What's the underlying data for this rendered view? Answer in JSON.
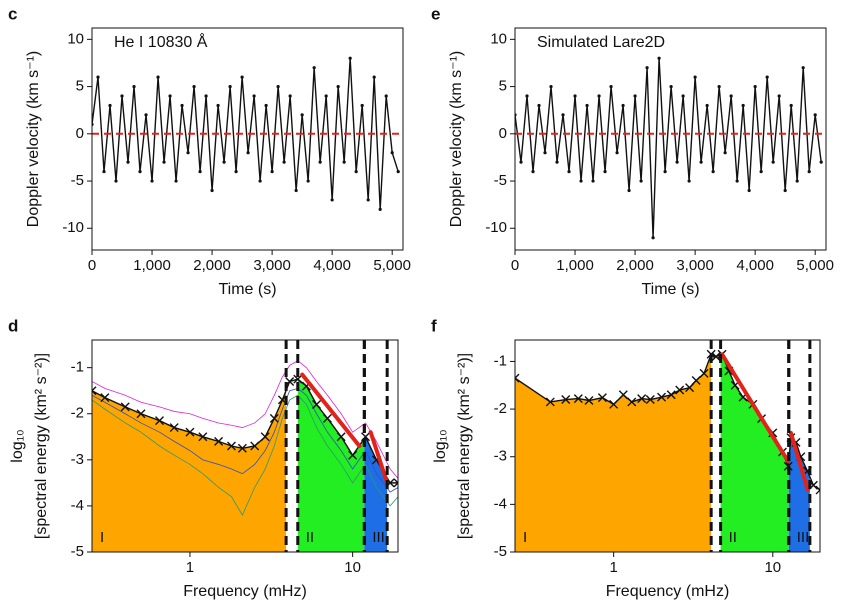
{
  "chart_data": [
    {
      "type": "line",
      "panel_label": "c",
      "annotation": "He I 10830 Å",
      "x_label": "Time (s)",
      "y_label": "Doppler velocity (km s⁻¹)",
      "xlim": [
        0,
        5180
      ],
      "xticks": [
        0,
        {
          "value": 1000,
          "label": "1,000"
        },
        {
          "value": 2000,
          "label": "2,000"
        },
        {
          "value": 3000,
          "label": "3,000"
        },
        {
          "value": 4000,
          "label": "4,000"
        },
        {
          "value": 5000,
          "label": "5,000"
        }
      ],
      "ylim": [
        -12.3,
        11.2
      ],
      "yticks": [
        -10,
        -5,
        0,
        5,
        10
      ],
      "hline": 0,
      "hline_color": "#e32219",
      "series": [
        {
          "color": "#111111",
          "marker": "dot",
          "x": [
            0,
            100,
            200,
            300,
            400,
            500,
            600,
            700,
            800,
            900,
            1000,
            1100,
            1200,
            1300,
            1400,
            1500,
            1600,
            1700,
            1800,
            1900,
            2000,
            2100,
            2200,
            2300,
            2400,
            2500,
            2600,
            2700,
            2800,
            2900,
            3000,
            3100,
            3200,
            3300,
            3400,
            3500,
            3600,
            3700,
            3800,
            3900,
            4000,
            4100,
            4200,
            4300,
            4400,
            4500,
            4600,
            4700,
            4800,
            4900,
            5000,
            5100
          ],
          "values": [
            1,
            6,
            -4,
            3,
            -5,
            4,
            -3,
            5,
            -4,
            2,
            -5,
            6,
            -3,
            4,
            -5,
            3,
            -2,
            5,
            -4,
            4,
            -6,
            3,
            -3,
            5,
            -4,
            6,
            -2,
            4,
            -5,
            3,
            -4,
            5,
            -3,
            4,
            -6,
            2,
            -5,
            7,
            -3,
            4,
            -7,
            5,
            -3,
            8,
            -4,
            3,
            -7,
            6,
            -8,
            4,
            -2,
            -4
          ]
        }
      ]
    },
    {
      "type": "line",
      "panel_label": "e",
      "annotation": "Simulated Lare2D",
      "x_label": "Time (s)",
      "y_label": "Doppler velocity (km s⁻¹)",
      "xlim": [
        0,
        5180
      ],
      "xticks": [
        0,
        {
          "value": 1000,
          "label": "1,000"
        },
        {
          "value": 2000,
          "label": "2,000"
        },
        {
          "value": 3000,
          "label": "3,000"
        },
        {
          "value": 4000,
          "label": "4,000"
        },
        {
          "value": 5000,
          "label": "5,000"
        }
      ],
      "ylim": [
        -12.3,
        11.2
      ],
      "yticks": [
        -10,
        -5,
        0,
        5,
        10
      ],
      "hline": 0,
      "hline_color": "#e32219",
      "series": [
        {
          "color": "#111111",
          "marker": "dot",
          "x": [
            0,
            100,
            200,
            300,
            400,
            500,
            600,
            700,
            800,
            900,
            1000,
            1100,
            1200,
            1300,
            1400,
            1500,
            1600,
            1700,
            1800,
            1900,
            2000,
            2100,
            2200,
            2300,
            2400,
            2500,
            2600,
            2700,
            2800,
            2900,
            3000,
            3100,
            3200,
            3300,
            3400,
            3500,
            3600,
            3700,
            3800,
            3900,
            4000,
            4100,
            4200,
            4300,
            4400,
            4500,
            4600,
            4700,
            4800,
            4900,
            5000,
            5100
          ],
          "values": [
            2,
            -3,
            4,
            -4,
            3,
            -2,
            5,
            -3,
            2,
            -4,
            4,
            -5,
            3,
            -5,
            4,
            -4,
            5,
            -2,
            3,
            -6,
            4,
            -5,
            7,
            -11,
            8,
            -4,
            5,
            -3,
            4,
            -5,
            6,
            -3,
            3,
            -4,
            5,
            -2,
            4,
            -5,
            3,
            -6,
            5,
            -4,
            6,
            -3,
            4,
            -6,
            3,
            -5,
            7,
            -4,
            2,
            -3
          ]
        }
      ]
    },
    {
      "type": "spectrum",
      "panel_label": "d",
      "x_label": "Frequency (mHz)",
      "y_label": [
        "log₁₀",
        "[spectral energy (km² s⁻²)]"
      ],
      "xscale": "log",
      "xlim": [
        0.25,
        19
      ],
      "xticks": [
        1,
        10
      ],
      "ylim": [
        -5,
        -0.4
      ],
      "yticks": [
        -5,
        -4,
        -3,
        -2,
        -1
      ],
      "regions": [
        {
          "label": "I",
          "color": "#ffa500",
          "range": [
            0.25,
            3.9
          ]
        },
        {
          "label": "II",
          "color": "#22ee22",
          "range": [
            4.6,
            11.8
          ]
        },
        {
          "label": "III",
          "color": "#1e6fe6",
          "range": [
            11.8,
            16.3
          ]
        }
      ],
      "series": [
        {
          "color": "#111111",
          "marker": "x",
          "x": [
            0.25,
            0.3,
            0.4,
            0.5,
            0.65,
            0.8,
            1,
            1.2,
            1.5,
            1.8,
            2.1,
            2.5,
            2.9,
            3.3,
            3.7,
            4.1,
            4.6,
            5.2,
            6,
            7,
            8.5,
            10,
            12,
            14,
            17,
            19
          ],
          "values": [
            -1.5,
            -1.65,
            -1.85,
            -2.0,
            -2.15,
            -2.3,
            -2.4,
            -2.5,
            -2.6,
            -2.7,
            -2.75,
            -2.7,
            -2.5,
            -2.1,
            -1.7,
            -1.3,
            -1.25,
            -1.4,
            -1.8,
            -2.1,
            -2.5,
            -2.9,
            -2.5,
            -3.0,
            -3.5,
            -3.5
          ]
        },
        {
          "color": "#e020e0",
          "x": [
            0.25,
            0.3,
            0.4,
            0.5,
            0.65,
            0.8,
            1,
            1.2,
            1.5,
            1.8,
            2.1,
            2.5,
            2.9,
            3.3,
            3.7,
            4.1,
            4.6,
            5.2,
            6,
            7,
            8.5,
            10,
            12,
            14,
            17,
            19
          ],
          "values": [
            -1.3,
            -1.45,
            -1.6,
            -1.75,
            -1.85,
            -1.95,
            -2.0,
            -2.1,
            -2.2,
            -2.25,
            -2.3,
            -2.2,
            -2.0,
            -1.6,
            -1.2,
            -0.95,
            -0.85,
            -1.0,
            -1.3,
            -1.6,
            -2.0,
            -2.4,
            -2.2,
            -2.6,
            -3.2,
            -3.4
          ]
        },
        {
          "color": "#3050c0",
          "x": [
            0.25,
            0.3,
            0.4,
            0.5,
            0.65,
            0.8,
            1,
            1.2,
            1.5,
            1.8,
            2.1,
            2.5,
            2.9,
            3.3,
            3.7,
            4.1,
            4.6,
            5.2,
            6,
            7,
            8.5,
            10,
            12,
            14,
            17,
            19
          ],
          "values": [
            -1.6,
            -1.75,
            -2.0,
            -2.2,
            -2.4,
            -2.6,
            -2.8,
            -3.0,
            -3.1,
            -3.2,
            -3.3,
            -3.1,
            -2.8,
            -2.4,
            -1.9,
            -1.5,
            -1.45,
            -1.6,
            -2.0,
            -2.4,
            -2.8,
            -3.2,
            -2.8,
            -3.3,
            -3.7,
            -3.6
          ]
        },
        {
          "color": "#2a9a70",
          "x": [
            0.25,
            0.3,
            0.4,
            0.5,
            0.65,
            0.8,
            1,
            1.2,
            1.5,
            1.8,
            2.1,
            2.5,
            2.9,
            3.3,
            3.7,
            4.1,
            4.6,
            5.2,
            6,
            7,
            8.5,
            10,
            12,
            14,
            17,
            19
          ],
          "values": [
            -1.7,
            -1.9,
            -2.2,
            -2.4,
            -2.7,
            -2.9,
            -3.1,
            -3.3,
            -3.6,
            -3.8,
            -4.2,
            -3.6,
            -3.2,
            -2.7,
            -2.1,
            -1.7,
            -1.6,
            -1.8,
            -2.3,
            -2.7,
            -3.1,
            -3.5,
            -3.1,
            -3.6,
            -4.0,
            -3.8
          ]
        }
      ],
      "fits": [
        {
          "color": "#e32219",
          "x": [
            4.9,
            11
          ],
          "values": [
            -1.15,
            -2.7
          ]
        },
        {
          "color": "#e32219",
          "x": [
            12.9,
            16.3
          ],
          "values": [
            -2.4,
            -3.5
          ]
        }
      ]
    },
    {
      "type": "spectrum",
      "panel_label": "f",
      "x_label": "Frequency (mHz)",
      "y_label": [
        "log₁₀",
        "[spectral energy (km² s⁻²)]"
      ],
      "xscale": "log",
      "xlim": [
        0.24,
        19.8
      ],
      "xticks": [
        1,
        10
      ],
      "ylim": [
        -5,
        -0.55
      ],
      "yticks": [
        -5,
        -4,
        -3,
        -2,
        -1
      ],
      "regions": [
        {
          "label": "I",
          "color": "#ffa500",
          "range": [
            0.24,
            4.1
          ]
        },
        {
          "label": "II",
          "color": "#22ee22",
          "range": [
            4.7,
            12.6
          ]
        },
        {
          "label": "III",
          "color": "#1e6fe6",
          "range": [
            12.6,
            17.1
          ]
        }
      ],
      "series": [
        {
          "color": "#111111",
          "marker": "x",
          "x": [
            0.24,
            0.4,
            0.5,
            0.6,
            0.7,
            0.85,
            1,
            1.15,
            1.3,
            1.5,
            1.7,
            2,
            2.3,
            2.6,
            3,
            3.3,
            3.7,
            4.1,
            4.4,
            4.8,
            5.3,
            5.8,
            6.5,
            7.5,
            8.5,
            10,
            11.5,
            12.5,
            13,
            14,
            15,
            16.5,
            18,
            19.8
          ],
          "values": [
            -1.35,
            -1.85,
            -1.8,
            -1.78,
            -1.82,
            -1.76,
            -1.9,
            -1.7,
            -1.85,
            -1.78,
            -1.8,
            -1.75,
            -1.7,
            -1.6,
            -1.55,
            -1.4,
            -1.25,
            -0.85,
            -0.9,
            -0.85,
            -1.2,
            -1.5,
            -1.75,
            -1.9,
            -2.2,
            -2.5,
            -2.9,
            -3.2,
            -2.6,
            -2.7,
            -3.0,
            -3.3,
            -3.6,
            -3.7
          ]
        }
      ],
      "fits": [
        {
          "color": "#e32219",
          "x": [
            4.8,
            12.5
          ],
          "values": [
            -0.85,
            -3.1
          ]
        },
        {
          "color": "#e32219",
          "x": [
            13,
            16.6
          ],
          "values": [
            -2.5,
            -3.7
          ]
        }
      ]
    }
  ]
}
